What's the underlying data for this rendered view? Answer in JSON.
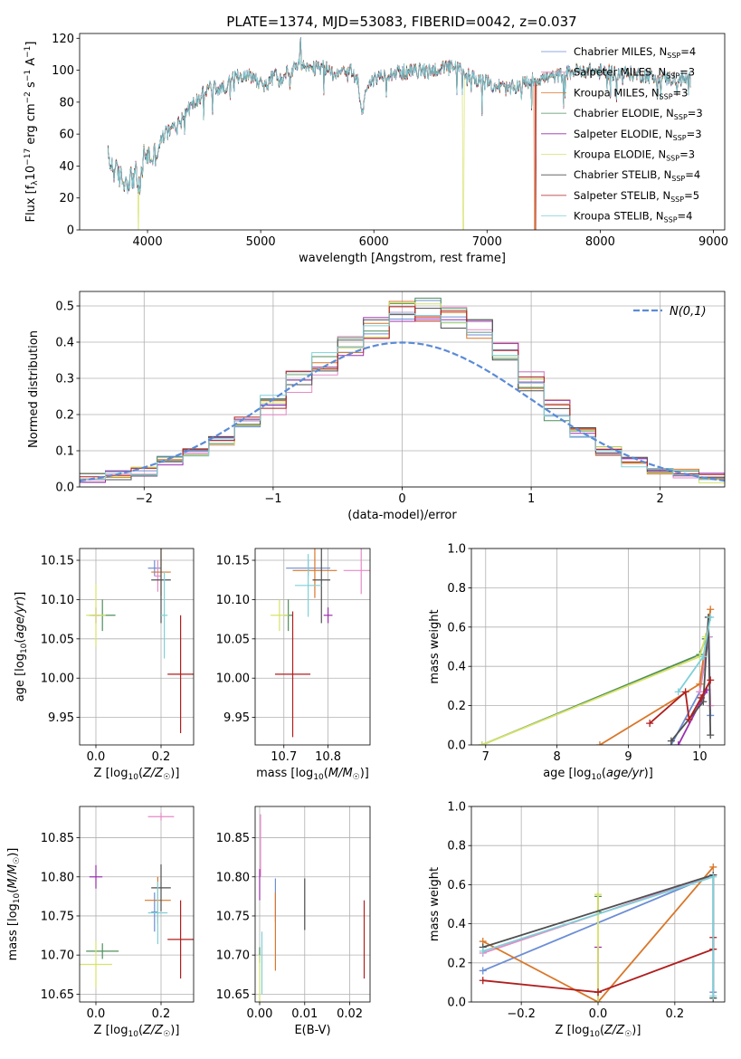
{
  "figure_title": "PLATE=1374, MJD=53083, FIBERID=0042, z=0.037",
  "colors": {
    "Chabrier MILES": "#6c8ed4",
    "Salpeter MILES": "#e58ac6",
    "Kroupa MILES": "#d9772a",
    "Chabrier ELODIE": "#4f8f5b",
    "Salpeter ELODIE": "#9b2fae",
    "Kroupa ELODIE": "#d7e26a",
    "Chabrier STELIB": "#505050",
    "Salpeter STELIB": "#b01e1e",
    "Kroupa STELIB": "#7fd0d8",
    "gaussian": "#5b8bd6"
  },
  "chart_data": [
    {
      "id": "spectrum",
      "type": "line",
      "xlabel": "wavelength [Angstrom, rest frame]",
      "ylabel": "Flux [f_λ 10^-17 erg cm^-2 s^-1 A^-1]",
      "xlim": [
        3400,
        9100
      ],
      "ylim": [
        0,
        123
      ],
      "xticks": [
        4000,
        5000,
        6000,
        7000,
        8000,
        9000
      ],
      "yticks": [
        0,
        20,
        40,
        60,
        80,
        100,
        120
      ],
      "legend_position": "top-right",
      "spectrum_anchor_points": {
        "x": [
          3650,
          3700,
          3800,
          3900,
          3930,
          3970,
          4050,
          4150,
          4250,
          4350,
          4450,
          4550,
          4650,
          4750,
          4850,
          4950,
          5050,
          5150,
          5250,
          5350,
          5450,
          5550,
          5650,
          5750,
          5850,
          5900,
          5950,
          6100,
          6300,
          6500,
          6700,
          6900,
          7000,
          7200,
          7400,
          7600,
          7800,
          8000,
          8200,
          8400,
          8600,
          8800
        ],
        "y": [
          45,
          38,
          30,
          35,
          24,
          48,
          45,
          60,
          65,
          75,
          82,
          90,
          88,
          94,
          98,
          95,
          90,
          100,
          98,
          103,
          100,
          102,
          98,
          101,
          96,
          82,
          92,
          98,
          99,
          100,
          102,
          95,
          92,
          88,
          94,
          96,
          100,
          99,
          98,
          97,
          95,
          94
        ]
      },
      "dropouts": [
        {
          "series": "Kroupa ELODIE",
          "x": 3920
        },
        {
          "series": "Kroupa ELODIE",
          "x": 6790
        },
        {
          "series": "Kroupa MILES",
          "x": 7420
        },
        {
          "series": "Salpeter STELIB",
          "x": 7430
        }
      ],
      "series": [
        {
          "name": "Chabrier MILES",
          "nssp": "4"
        },
        {
          "name": "Salpeter MILES",
          "nssp": "3"
        },
        {
          "name": "Kroupa MILES",
          "nssp": "3"
        },
        {
          "name": "Chabrier ELODIE",
          "nssp": "3"
        },
        {
          "name": "Salpeter ELODIE",
          "nssp": "3"
        },
        {
          "name": "Kroupa ELODIE",
          "nssp": "3"
        },
        {
          "name": "Chabrier STELIB",
          "nssp": "4"
        },
        {
          "name": "Salpeter STELIB",
          "nssp": "5"
        },
        {
          "name": "Kroupa STELIB",
          "nssp": "4"
        }
      ]
    },
    {
      "id": "residuals",
      "type": "histogram",
      "xlabel": "(data-model)/error",
      "ylabel": "Normed distribution",
      "xlim": [
        -2.5,
        2.5
      ],
      "ylim": [
        0,
        0.54
      ],
      "xticks": [
        -2,
        -1,
        0,
        1,
        2
      ],
      "yticks": [
        0.0,
        0.1,
        0.2,
        0.3,
        0.4,
        0.5
      ],
      "grid": true,
      "legend_position": "top-right",
      "legend_label": "N(0,1)",
      "bin_edges": [
        -2.5,
        -2.3,
        -2.1,
        -1.9,
        -1.7,
        -1.5,
        -1.3,
        -1.1,
        -0.9,
        -0.7,
        -0.5,
        -0.3,
        -0.1,
        0.1,
        0.3,
        0.5,
        0.7,
        0.9,
        1.1,
        1.3,
        1.5,
        1.7,
        1.9,
        2.1,
        2.3,
        2.5
      ],
      "base_density": [
        0.025,
        0.035,
        0.045,
        0.07,
        0.1,
        0.13,
        0.18,
        0.23,
        0.29,
        0.34,
        0.39,
        0.44,
        0.48,
        0.49,
        0.47,
        0.43,
        0.37,
        0.29,
        0.21,
        0.15,
        0.1,
        0.07,
        0.05,
        0.035,
        0.025
      ]
    },
    {
      "id": "age_vs_Z",
      "type": "scatter",
      "xlabel": "Z [log10(Z/Z☉)]",
      "ylabel": "age [log10(age/yr)]",
      "xlim": [
        -0.05,
        0.3
      ],
      "ylim": [
        9.915,
        10.165
      ],
      "xticks": [
        0.0,
        0.2
      ],
      "yticks": [
        9.95,
        10.0,
        10.05,
        10.1,
        10.15
      ],
      "points": [
        {
          "series": "Chabrier MILES",
          "x": 0.18,
          "y": 10.14,
          "ex": 0.02,
          "ey": 0.01
        },
        {
          "series": "Salpeter MILES",
          "x": 0.19,
          "y": 10.13,
          "ex": 0.01,
          "ey": 0.02
        },
        {
          "series": "Kroupa MILES",
          "x": 0.2,
          "y": 10.135,
          "ex": 0.03,
          "ey": 0.03
        },
        {
          "series": "Chabrier ELODIE",
          "x": 0.02,
          "y": 10.08,
          "ex": 0.04,
          "ey": 0.02
        },
        {
          "series": "Salpeter ELODIE",
          "x": 0.0,
          "y": 10.08,
          "ex": 0.01,
          "ey": 0.01
        },
        {
          "series": "Kroupa ELODIE",
          "x": 0.0,
          "y": 10.08,
          "ex": 0.03,
          "ey": 0.04
        },
        {
          "series": "Chabrier STELIB",
          "x": 0.2,
          "y": 10.125,
          "ex": 0.03,
          "ey": 0.055
        },
        {
          "series": "Salpeter STELIB",
          "x": 0.26,
          "y": 10.005,
          "ex": 0.04,
          "ey": 0.075
        },
        {
          "series": "Kroupa STELIB",
          "x": 0.21,
          "y": 10.08,
          "ex": 0.01,
          "ey": 0.055
        }
      ]
    },
    {
      "id": "age_vs_mass",
      "type": "scatter",
      "xlabel": "mass [log10(M/M☉)]",
      "ylabel": "",
      "xlim": [
        10.635,
        10.895
      ],
      "ylim": [
        9.915,
        10.165
      ],
      "xticks": [
        10.7,
        10.8
      ],
      "yticks": [
        9.95,
        10.0,
        10.05,
        10.1,
        10.15
      ],
      "points": [
        {
          "series": "Chabrier MILES",
          "x": 10.755,
          "y": 10.14,
          "ex": 0.05,
          "ey": 0.01
        },
        {
          "series": "Salpeter MILES",
          "x": 10.875,
          "y": 10.137,
          "ex": 0.04,
          "ey": 0.03
        },
        {
          "series": "Kroupa MILES",
          "x": 10.77,
          "y": 10.137,
          "ex": 0.05,
          "ey": 0.035
        },
        {
          "series": "Chabrier ELODIE",
          "x": 10.71,
          "y": 10.08,
          "ex": 0.01,
          "ey": 0.02
        },
        {
          "series": "Salpeter ELODIE",
          "x": 10.8,
          "y": 10.08,
          "ex": 0.01,
          "ey": 0.01
        },
        {
          "series": "Kroupa ELODIE",
          "x": 10.69,
          "y": 10.08,
          "ex": 0.02,
          "ey": 0.02
        },
        {
          "series": "Chabrier STELIB",
          "x": 10.785,
          "y": 10.125,
          "ex": 0.02,
          "ey": 0.055
        },
        {
          "series": "Salpeter STELIB",
          "x": 10.72,
          "y": 10.005,
          "ex": 0.04,
          "ey": 0.08
        },
        {
          "series": "Kroupa STELIB",
          "x": 10.755,
          "y": 10.118,
          "ex": 0.03,
          "ey": 0.04
        }
      ]
    },
    {
      "id": "weight_vs_age",
      "type": "line",
      "xlabel": "age [log10(age/yr)]",
      "ylabel": "mass weight",
      "xlim": [
        6.8,
        10.35
      ],
      "ylim": [
        0,
        1
      ],
      "xticks": [
        7,
        8,
        9,
        10
      ],
      "yticks": [
        0.0,
        0.2,
        0.4,
        0.6,
        0.8,
        1.0
      ],
      "grid": true,
      "series": [
        {
          "name": "Chabrier MILES",
          "x": [
            9.6,
            10.0,
            10.13,
            10.15
          ],
          "y": [
            0.0,
            0.27,
            0.55,
            0.15
          ]
        },
        {
          "name": "Salpeter MILES",
          "x": [
            10.0,
            10.12,
            10.15
          ],
          "y": [
            0.27,
            0.55,
            0.2
          ]
        },
        {
          "name": "Kroupa MILES",
          "x": [
            8.6,
            10.0,
            10.15
          ],
          "y": [
            0.0,
            0.31,
            0.69
          ]
        },
        {
          "name": "Chabrier ELODIE",
          "x": [
            6.95,
            10.0,
            10.08
          ],
          "y": [
            0.0,
            0.46,
            0.54
          ]
        },
        {
          "name": "Salpeter ELODIE",
          "x": [
            9.7,
            10.1
          ],
          "y": [
            0.0,
            0.28
          ]
        },
        {
          "name": "Kroupa ELODIE",
          "x": [
            6.95,
            10.0,
            10.08
          ],
          "y": [
            0.0,
            0.45,
            0.55
          ]
        },
        {
          "name": "Chabrier STELIB",
          "x": [
            9.6,
            10.05,
            10.12,
            10.15
          ],
          "y": [
            0.02,
            0.22,
            0.65,
            0.05
          ]
        },
        {
          "name": "Salpeter STELIB",
          "x": [
            9.3,
            9.8,
            9.85,
            10.02,
            10.15
          ],
          "y": [
            0.11,
            0.27,
            0.13,
            0.24,
            0.33
          ]
        },
        {
          "name": "Kroupa STELIB",
          "x": [
            9.7,
            10.05,
            10.15
          ],
          "y": [
            0.27,
            0.45,
            0.65
          ]
        }
      ]
    },
    {
      "id": "mass_vs_Z",
      "type": "scatter",
      "xlabel": "Z [log10(Z/Z☉)]",
      "ylabel": "mass [log10(M/M☉)]",
      "xlim": [
        -0.05,
        0.3
      ],
      "ylim": [
        10.64,
        10.89
      ],
      "xticks": [
        0.0,
        0.2
      ],
      "yticks": [
        10.65,
        10.7,
        10.75,
        10.8,
        10.85
      ],
      "points": [
        {
          "series": "Chabrier MILES",
          "x": 0.18,
          "y": 10.755,
          "ex": 0.01,
          "ey": 0.025
        },
        {
          "series": "Salpeter MILES",
          "x": 0.2,
          "y": 10.877,
          "ex": 0.04,
          "ey": 0.005
        },
        {
          "series": "Kroupa MILES",
          "x": 0.19,
          "y": 10.77,
          "ex": 0.04,
          "ey": 0.03
        },
        {
          "series": "Chabrier ELODIE",
          "x": 0.02,
          "y": 10.705,
          "ex": 0.05,
          "ey": 0.01
        },
        {
          "series": "Salpeter ELODIE",
          "x": 0.0,
          "y": 10.8,
          "ex": 0.02,
          "ey": 0.015
        },
        {
          "series": "Kroupa ELODIE",
          "x": 0.0,
          "y": 10.688,
          "ex": 0.05,
          "ey": 0.03
        },
        {
          "series": "Chabrier STELIB",
          "x": 0.2,
          "y": 10.786,
          "ex": 0.03,
          "ey": 0.03
        },
        {
          "series": "Salpeter STELIB",
          "x": 0.26,
          "y": 10.72,
          "ex": 0.04,
          "ey": 0.05
        },
        {
          "series": "Kroupa STELIB",
          "x": 0.19,
          "y": 10.754,
          "ex": 0.03,
          "ey": 0.04
        }
      ]
    },
    {
      "id": "mass_vs_ebv",
      "type": "scatter",
      "xlabel": "E(B-V)",
      "ylabel": "",
      "xlim": [
        -0.001,
        0.0245
      ],
      "ylim": [
        10.64,
        10.89
      ],
      "xticks": [
        0.0,
        0.01,
        0.02
      ],
      "yticks": [
        10.65,
        10.7,
        10.75,
        10.8,
        10.85
      ],
      "points": [
        {
          "series": "Chabrier MILES",
          "x": 0.0035,
          "y": 10.77,
          "ex": 0,
          "ey": 0.028
        },
        {
          "series": "Salpeter MILES",
          "x": 0.0002,
          "y": 10.84,
          "ex": 0,
          "ey": 0.04
        },
        {
          "series": "Kroupa MILES",
          "x": 0.0035,
          "y": 10.73,
          "ex": 0,
          "ey": 0.05
        },
        {
          "series": "Chabrier ELODIE",
          "x": 0.0,
          "y": 10.7,
          "ex": 0,
          "ey": 0.01
        },
        {
          "series": "Salpeter ELODIE",
          "x": 0.0,
          "y": 10.79,
          "ex": 0,
          "ey": 0.02
        },
        {
          "series": "Kroupa ELODIE",
          "x": 0.0,
          "y": 10.67,
          "ex": 0,
          "ey": 0.03
        },
        {
          "series": "Chabrier STELIB",
          "x": 0.01,
          "y": 10.765,
          "ex": 0,
          "ey": 0.033
        },
        {
          "series": "Salpeter STELIB",
          "x": 0.0232,
          "y": 10.72,
          "ex": 0,
          "ey": 0.05
        },
        {
          "series": "Kroupa STELIB",
          "x": 0.0005,
          "y": 10.69,
          "ex": 0,
          "ey": 0.04
        }
      ]
    },
    {
      "id": "weight_vs_Z",
      "type": "line",
      "xlabel": "Z [log10(Z/Z☉)]",
      "ylabel": "mass weight",
      "xlim": [
        -0.33,
        0.33
      ],
      "ylim": [
        0,
        1
      ],
      "xticks": [
        -0.2,
        0.0,
        0.2
      ],
      "yticks": [
        0.0,
        0.2,
        0.4,
        0.6,
        0.8,
        1.0
      ],
      "grid": true,
      "series": [
        {
          "name": "Chabrier MILES",
          "x": [
            -0.3,
            0.3,
            0.3
          ],
          "y": [
            0.16,
            0.65,
            0.05
          ]
        },
        {
          "name": "Salpeter MILES",
          "x": [
            -0.3,
            0.3
          ],
          "y": [
            0.25,
            0.65
          ]
        },
        {
          "name": "Kroupa MILES",
          "x": [
            -0.3,
            0.0,
            0.3
          ],
          "y": [
            0.31,
            0.0,
            0.69
          ]
        },
        {
          "name": "Chabrier ELODIE",
          "x": [
            0.0,
            0.0
          ],
          "y": [
            0.46,
            0.54
          ]
        },
        {
          "name": "Salpeter ELODIE",
          "x": [
            0.0,
            0.0
          ],
          "y": [
            0.0,
            0.28
          ]
        },
        {
          "name": "Kroupa ELODIE",
          "x": [
            0.0,
            0.0
          ],
          "y": [
            0.0,
            0.55
          ]
        },
        {
          "name": "Chabrier STELIB",
          "x": [
            -0.3,
            0.3,
            0.3
          ],
          "y": [
            0.28,
            0.65,
            0.02
          ]
        },
        {
          "name": "Salpeter STELIB",
          "x": [
            -0.3,
            0.0,
            0.3,
            0.3
          ],
          "y": [
            0.11,
            0.05,
            0.27,
            0.33
          ]
        },
        {
          "name": "Kroupa STELIB",
          "x": [
            -0.3,
            0.3,
            0.3
          ],
          "y": [
            0.26,
            0.64,
            0.03
          ]
        }
      ]
    }
  ]
}
